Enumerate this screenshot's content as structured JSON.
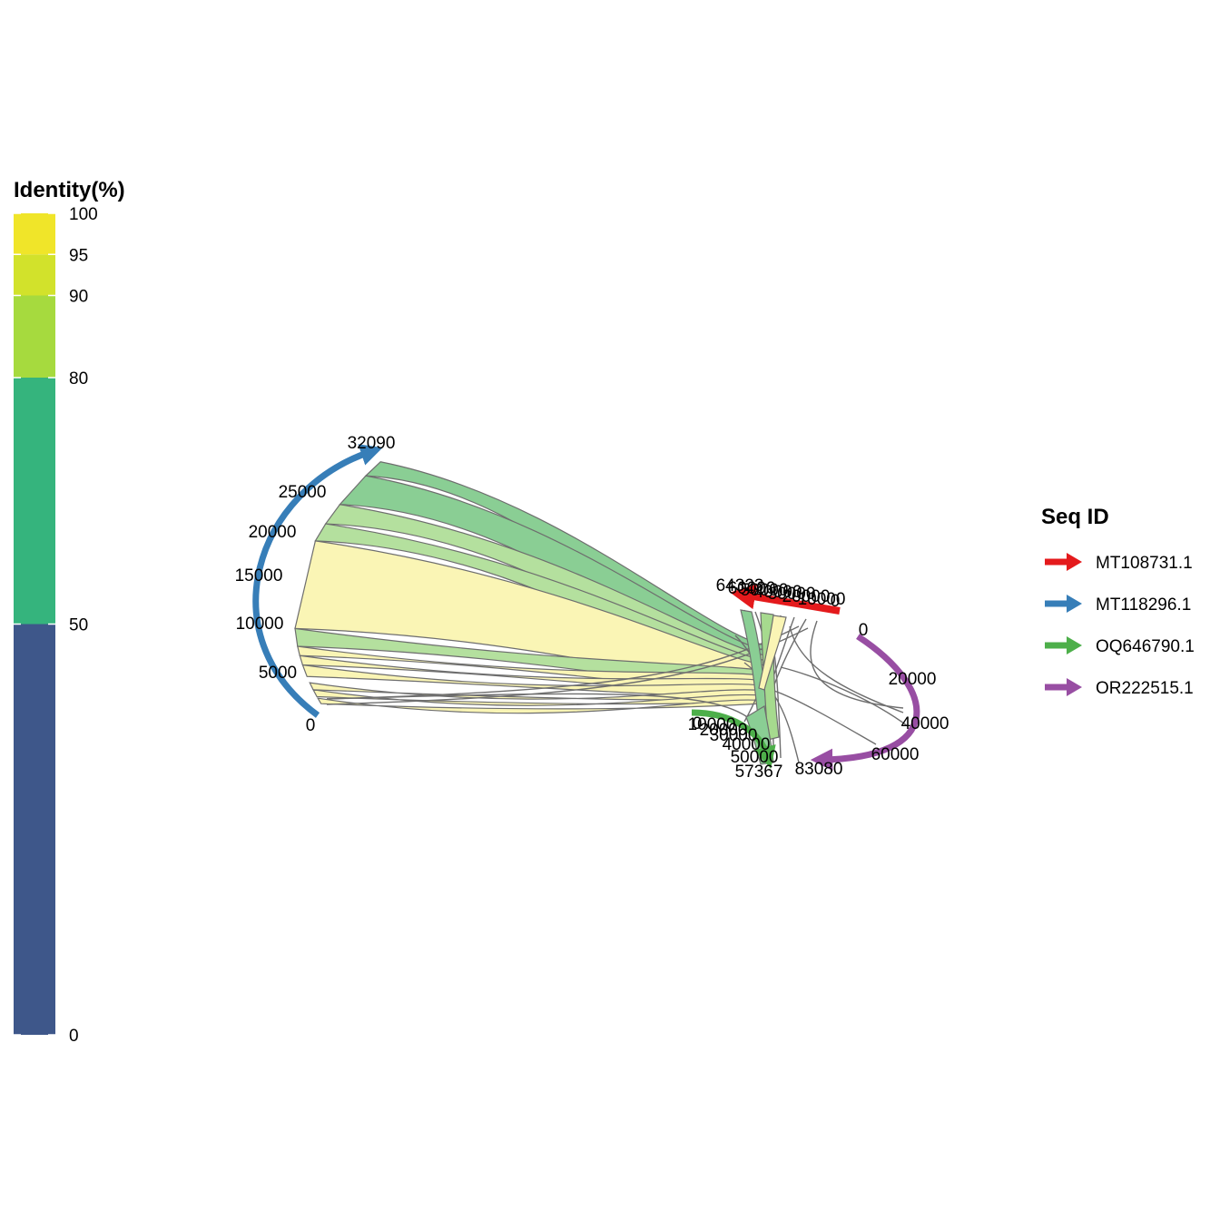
{
  "identity_legend": {
    "title": "Identity(%)",
    "bands": [
      {
        "from": 0,
        "to": 50,
        "color": "#3E578A"
      },
      {
        "from": 50,
        "to": 80,
        "color": "#35B47D"
      },
      {
        "from": 80,
        "to": 90,
        "color": "#A6DA3E"
      },
      {
        "from": 90,
        "to": 95,
        "color": "#D2E22B"
      },
      {
        "from": 95,
        "to": 100,
        "color": "#F0E529"
      }
    ],
    "tick_labels": [
      "0",
      "50",
      "80",
      "90",
      "95",
      "100"
    ]
  },
  "seq_legend": {
    "title": "Seq ID",
    "items": [
      {
        "label": "MT108731.1",
        "color": "#E41A1C"
      },
      {
        "label": "MT118296.1",
        "color": "#377EB8"
      },
      {
        "label": "OQ646790.1",
        "color": "#4DAF4A"
      },
      {
        "label": "OR222515.1",
        "color": "#984EA3"
      }
    ]
  },
  "sequences": [
    {
      "id": "MT118296.1",
      "length": 32090,
      "color": "#377EB8",
      "tick_labels": [
        "0",
        "5000",
        "10000",
        "15000",
        "20000",
        "25000",
        "32090"
      ]
    },
    {
      "id": "MT108731.1",
      "length": 64323,
      "color": "#E41A1C",
      "tick_labels": [
        "0",
        "10000",
        "20000",
        "30000",
        "40000",
        "50000",
        "60000",
        "64323"
      ]
    },
    {
      "id": "OR222515.1",
      "length": 83080,
      "color": "#984EA3",
      "tick_labels": [
        "0",
        "20000",
        "40000",
        "60000",
        "83080"
      ]
    },
    {
      "id": "OQ646790.1",
      "length": 57367,
      "color": "#4DAF4A",
      "tick_labels": [
        "0",
        "10000",
        "20000",
        "30000",
        "40000",
        "50000",
        "57367"
      ]
    }
  ],
  "links": [
    {
      "seq": "MT118296.1",
      "start": 30200,
      "end": 32000,
      "identity": 70
    },
    {
      "seq": "MT118296.1",
      "start": 26500,
      "end": 30200,
      "identity": 70
    },
    {
      "seq": "MT118296.1",
      "start": 24000,
      "end": 26500,
      "identity": 82
    },
    {
      "seq": "MT118296.1",
      "start": 21800,
      "end": 24000,
      "identity": 82
    },
    {
      "seq": "MT118296.1",
      "start": 10500,
      "end": 21800,
      "identity": 98
    },
    {
      "seq": "MT118296.1",
      "start": 8200,
      "end": 10500,
      "identity": 82
    },
    {
      "seq": "MT118296.1",
      "start": 7000,
      "end": 8200,
      "identity": 96
    },
    {
      "seq": "MT118296.1",
      "start": 5800,
      "end": 7000,
      "identity": 96
    },
    {
      "seq": "MT118296.1",
      "start": 4300,
      "end": 5800,
      "identity": 96
    },
    {
      "seq": "MT118296.1",
      "start": 2600,
      "end": 3500,
      "identity": 96
    },
    {
      "seq": "MT118296.1",
      "start": 1700,
      "end": 2600,
      "identity": 96
    },
    {
      "seq": "MT118296.1",
      "start": 800,
      "end": 1500,
      "identity": 96
    }
  ]
}
